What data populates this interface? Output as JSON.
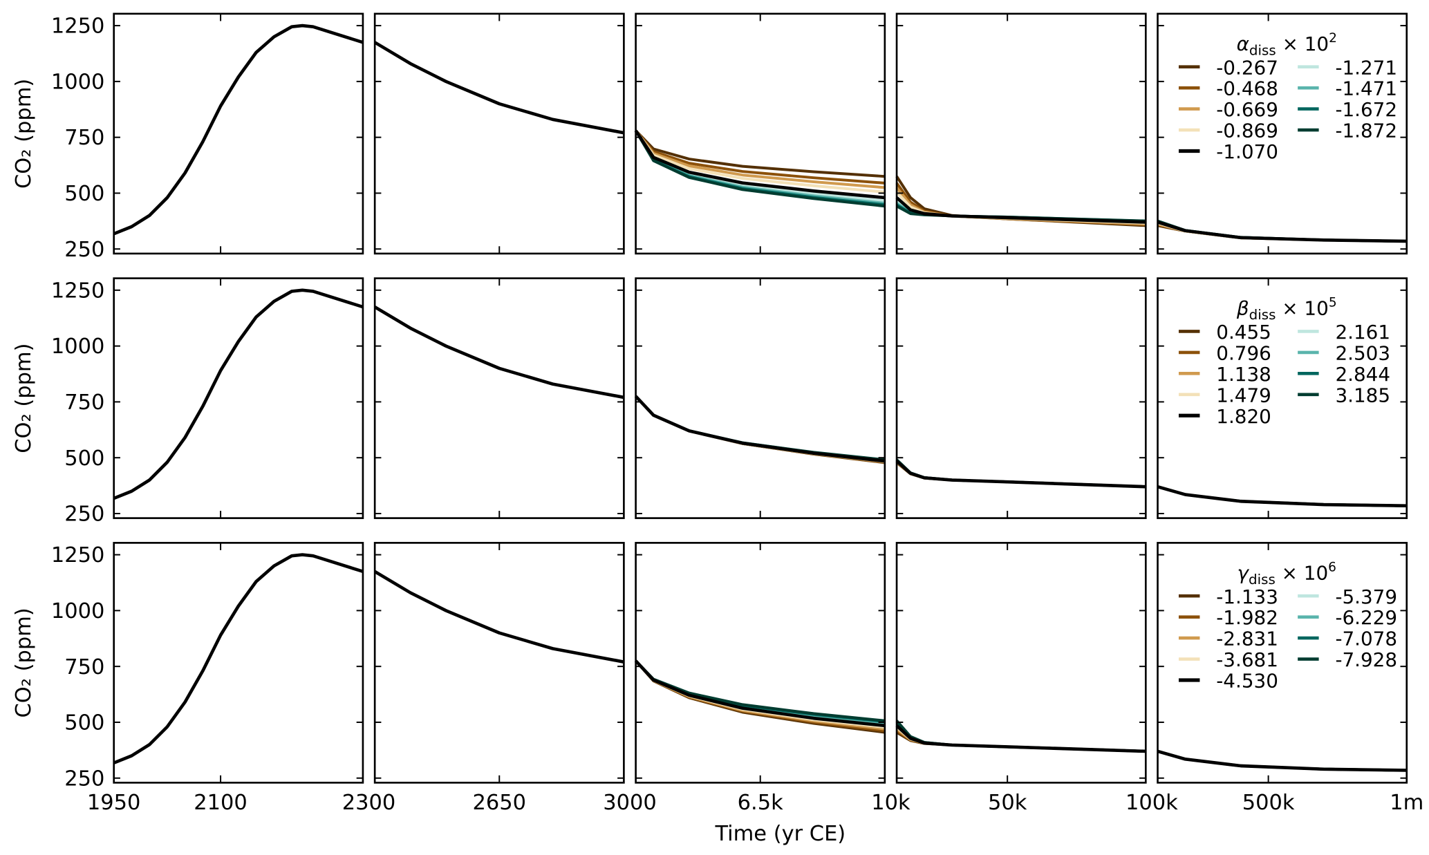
{
  "chart_data": {
    "type": "line",
    "xlabel": "Time (yr CE)",
    "ylabel": "CO₂ (ppm)",
    "ylim": [
      230,
      1310
    ],
    "yticks": [
      250,
      500,
      750,
      1000,
      1250
    ],
    "segments": [
      {
        "xlim": [
          1950,
          2300
        ]
      },
      {
        "xlim": [
          2300,
          3000
        ]
      },
      {
        "xlim": [
          3000,
          10000
        ]
      },
      {
        "xlim": [
          10000,
          100000
        ]
      },
      {
        "xlim": [
          100000,
          1000000
        ]
      }
    ],
    "xtick_labels": [
      {
        "value": 1950,
        "label": "1950"
      },
      {
        "value": 2100,
        "label": "2100"
      },
      {
        "value": 2300,
        "label": "2300"
      },
      {
        "value": 2650,
        "label": "2650"
      },
      {
        "value": 3000,
        "label": "3000"
      },
      {
        "value": 6500,
        "label": "6.5k"
      },
      {
        "value": 10000,
        "label": "10k"
      },
      {
        "value": 50000,
        "label": "50k"
      },
      {
        "value": 100000,
        "label": "100k"
      },
      {
        "value": 500000,
        "label": "500k"
      },
      {
        "value": 1000000,
        "label": "1m"
      }
    ],
    "baseline": {
      "x": [
        1950,
        1975,
        2000,
        2025,
        2050,
        2075,
        2100,
        2125,
        2150,
        2175,
        2200,
        2215,
        2230,
        2300,
        2400,
        2500,
        2650,
        2800,
        3000
      ],
      "y": [
        318,
        350,
        400,
        480,
        590,
        730,
        890,
        1020,
        1130,
        1200,
        1245,
        1250,
        1245,
        1175,
        1080,
        1000,
        900,
        830,
        770
      ]
    },
    "x": [
      3000,
      3500,
      4500,
      6000,
      8000,
      10000,
      15000,
      20000,
      30000,
      50000,
      100000,
      200000,
      400000,
      700000,
      1000000
    ],
    "rows": [
      {
        "legend_symbol": "α",
        "legend_sub": "diss",
        "legend_mult": "× 10",
        "legend_exp": "2",
        "series": [
          {
            "name": "-0.267",
            "color": "#543005",
            "y": [
              780,
              698,
              653,
              620,
              596,
              575,
              480,
              430,
              400,
              385,
              355,
              330,
              300,
              290,
              285
            ]
          },
          {
            "name": "-0.468",
            "color": "#8c510a",
            "y": [
              780,
              686,
              634,
              597,
              569,
              545,
              460,
              420,
              398,
              385,
              358,
              330,
              300,
              290,
              285
            ]
          },
          {
            "name": "-0.669",
            "color": "#d09a4e",
            "y": [
              780,
              678,
              622,
              581,
              551,
              525,
              448,
              415,
              397,
              386,
              362,
              330,
              300,
              290,
              285
            ]
          },
          {
            "name": "-0.869",
            "color": "#f3e1b8",
            "y": [
              780,
              670,
              610,
              566,
              533,
              505,
              438,
              412,
              397,
              388,
              366,
              330,
              300,
              290,
              285
            ]
          },
          {
            "name": "-1.271",
            "color": "#bfe6df",
            "y": [
              780,
              654,
              585,
              534,
              497,
              465,
              418,
              406,
              398,
              391,
              372,
              332,
              301,
              290,
              285
            ]
          },
          {
            "name": "-1.471",
            "color": "#5ab4ac",
            "y": [
              780,
              650,
              579,
              527,
              488,
              455,
              414,
              405,
              398,
              392,
              374,
              332,
              301,
              290,
              285
            ]
          },
          {
            "name": "-1.672",
            "color": "#01665e",
            "y": [
              780,
              647,
              574,
              521,
              481,
              448,
              411,
              404,
              398,
              393,
              375,
              333,
              302,
              290,
              285
            ]
          },
          {
            "name": "-1.872",
            "color": "#003c30",
            "y": [
              780,
              645,
              570,
              516,
              476,
              442,
              408,
              403,
              398,
              393,
              376,
              333,
              302,
              290,
              285
            ]
          },
          {
            "name": "-1.070",
            "color": "#000000",
            "y": [
              780,
              660,
              594,
              546,
              510,
              480,
              425,
              408,
              398,
              390,
              370,
              332,
              301,
              290,
              285
            ]
          }
        ]
      },
      {
        "legend_symbol": "β",
        "legend_sub": "diss",
        "legend_mult": "× 10",
        "legend_exp": "5",
        "series": [
          {
            "name": "0.455",
            "color": "#543005",
            "y": [
              775,
              690,
              620,
              563,
              516,
              478,
              428,
              409,
              400,
              392,
              370,
              335,
              305,
              290,
              285
            ]
          },
          {
            "name": "0.796",
            "color": "#8c510a",
            "y": [
              775,
              690,
              620,
              563,
              517,
              479,
              428,
              409,
              400,
              392,
              370,
              335,
              305,
              290,
              285
            ]
          },
          {
            "name": "1.138",
            "color": "#d09a4e",
            "y": [
              775,
              690,
              620,
              564,
              518,
              481,
              429,
              410,
              400,
              392,
              370,
              335,
              305,
              290,
              285
            ]
          },
          {
            "name": "1.479",
            "color": "#f3e1b8",
            "y": [
              775,
              690,
              620,
              564,
              519,
              483,
              429,
              410,
              400,
              392,
              370,
              335,
              305,
              290,
              285
            ]
          },
          {
            "name": "2.161",
            "color": "#bfe6df",
            "y": [
              775,
              690,
              621,
              566,
              521,
              487,
              431,
              410,
              400,
              392,
              370,
              335,
              305,
              290,
              285
            ]
          },
          {
            "name": "2.503",
            "color": "#5ab4ac",
            "y": [
              775,
              690,
              621,
              566,
              522,
              488,
              431,
              410,
              400,
              392,
              370,
              335,
              305,
              290,
              285
            ]
          },
          {
            "name": "2.844",
            "color": "#01665e",
            "y": [
              775,
              690,
              621,
              567,
              523,
              490,
              432,
              411,
              400,
              392,
              370,
              335,
              305,
              290,
              285
            ]
          },
          {
            "name": "3.185",
            "color": "#003c30",
            "y": [
              775,
              690,
              621,
              567,
              524,
              491,
              432,
              411,
              400,
              392,
              370,
              335,
              305,
              290,
              285
            ]
          },
          {
            "name": "1.820",
            "color": "#000000",
            "y": [
              775,
              690,
              620,
              565,
              520,
              485,
              430,
              410,
              400,
              392,
              370,
              335,
              305,
              290,
              285
            ]
          }
        ]
      },
      {
        "legend_symbol": "γ",
        "legend_sub": "diss",
        "legend_mult": "× 10",
        "legend_exp": "6",
        "series": [
          {
            "name": "-1.133",
            "color": "#543005",
            "y": [
              775,
              685,
              610,
              545,
              495,
              455,
              418,
              405,
              398,
              390,
              370,
              335,
              305,
              290,
              285
            ]
          },
          {
            "name": "-1.982",
            "color": "#8c510a",
            "y": [
              775,
              686,
              612,
              549,
              500,
              462,
              420,
              406,
              398,
              390,
              370,
              335,
              305,
              290,
              285
            ]
          },
          {
            "name": "-2.831",
            "color": "#d09a4e",
            "y": [
              775,
              687,
              615,
              553,
              506,
              470,
              422,
              406,
              398,
              390,
              370,
              335,
              305,
              290,
              285
            ]
          },
          {
            "name": "-3.681",
            "color": "#f3e1b8",
            "y": [
              775,
              688,
              618,
              558,
              512,
              478,
              425,
              407,
              398,
              390,
              370,
              335,
              305,
              290,
              285
            ]
          },
          {
            "name": "-5.379",
            "color": "#bfe6df",
            "y": [
              775,
              690,
              624,
              568,
              524,
              492,
              430,
              408,
              398,
              390,
              370,
              335,
              305,
              290,
              285
            ]
          },
          {
            "name": "-6.229",
            "color": "#5ab4ac",
            "y": [
              775,
              691,
              627,
              572,
              530,
              498,
              432,
              409,
              398,
              390,
              370,
              335,
              305,
              290,
              285
            ]
          },
          {
            "name": "-7.078",
            "color": "#01665e",
            "y": [
              775,
              692,
              629,
              576,
              535,
              503,
              434,
              410,
              398,
              390,
              370,
              335,
              305,
              290,
              285
            ]
          },
          {
            "name": "-7.928",
            "color": "#003c30",
            "y": [
              775,
              693,
              631,
              579,
              539,
              507,
              436,
              410,
              398,
              390,
              370,
              335,
              305,
              290,
              285
            ]
          },
          {
            "name": "-4.530",
            "color": "#000000",
            "y": [
              775,
              689,
              621,
              563,
              518,
              485,
              428,
              407,
              398,
              390,
              370,
              335,
              305,
              290,
              285
            ]
          }
        ]
      }
    ],
    "legend_order": [
      [
        "#543005",
        "#8c510a",
        "#d09a4e",
        "#f3e1b8",
        "#000000"
      ],
      [
        "#bfe6df",
        "#5ab4ac",
        "#01665e",
        "#003c30"
      ]
    ]
  }
}
